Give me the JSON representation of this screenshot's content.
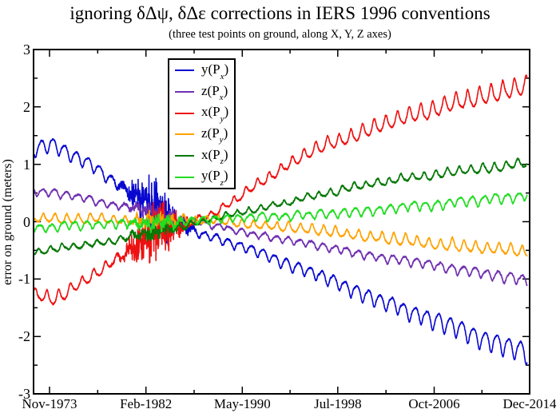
{
  "chart_data": {
    "type": "line",
    "title": "ignoring δΔψ, δΔε corrections in IERS 1996 conventions",
    "subtitle": "(three test points on ground, along X, Y, Z axes)",
    "xlabel": "",
    "ylabel": "error on ground (meters)",
    "ylim": [
      -3,
      3
    ],
    "grid": false,
    "legend_position": "upper-left-inside",
    "frame_color": "#000000",
    "y_major_ticks": [
      3,
      2,
      1,
      0,
      -1,
      -2,
      -3
    ],
    "y_tick_labels": [
      "3",
      "2",
      "1",
      "0",
      "-1",
      "-2",
      "-3"
    ],
    "y_minor_step": 0.5,
    "x_tick_labels": [
      "Nov-1973",
      "Feb-1982",
      "May-1990",
      "Jul-1998",
      "Oct-2006",
      "Dec-2014"
    ],
    "x_tick_years": [
      1973.87,
      1982.12,
      1990.37,
      1998.54,
      2006.79,
      2014.96
    ],
    "x_minor_ticks_between_majors": 1,
    "x_range_years": [
      1972.57,
      2014.75
    ],
    "annual_oscillation": true,
    "noise_burst": {
      "center_year": 1982.9,
      "half_width_years": 2.1
    },
    "series": [
      {
        "name": "y(Px)",
        "label_pre": "y(P",
        "label_sub": "x",
        "label_post": ")",
        "color": "#0808d0",
        "osc_sign": -1,
        "osc_phase": 0.58,
        "osc_amp_base": 0.05,
        "osc_amp_scale": 0.055,
        "burst_amp": 0.55,
        "seed": 11,
        "trend_points": [
          [
            1972.57,
            1.26
          ],
          [
            1974,
            1.32
          ],
          [
            1975,
            1.26
          ],
          [
            1976,
            1.14
          ],
          [
            1977,
            1.02
          ],
          [
            1978,
            0.9
          ],
          [
            1979,
            0.76
          ],
          [
            1980,
            0.62
          ],
          [
            1981,
            0.47
          ],
          [
            1982,
            0.32
          ],
          [
            1983,
            0.18
          ],
          [
            1984,
            0.05
          ],
          [
            1985,
            -0.05
          ],
          [
            1986,
            -0.14
          ],
          [
            1988,
            -0.28
          ],
          [
            1990,
            -0.42
          ],
          [
            1992,
            -0.57
          ],
          [
            1994,
            -0.72
          ],
          [
            1996,
            -0.88
          ],
          [
            1998,
            -1.04
          ],
          [
            2000,
            -1.2
          ],
          [
            2002,
            -1.36
          ],
          [
            2004,
            -1.52
          ],
          [
            2006,
            -1.66
          ],
          [
            2008,
            -1.82
          ],
          [
            2010,
            -1.98
          ],
          [
            2012,
            -2.12
          ],
          [
            2014.75,
            -2.31
          ]
        ]
      },
      {
        "name": "z(Px)",
        "label_pre": "z(P",
        "label_sub": "x",
        "label_post": ")",
        "color": "#7030b0",
        "osc_sign": -1,
        "osc_phase": 0.45,
        "osc_amp_base": 0.04,
        "osc_amp_scale": 0.045,
        "burst_amp": 0.12,
        "seed": 22,
        "trend_points": [
          [
            1972.57,
            0.55
          ],
          [
            1976,
            0.42
          ],
          [
            1980,
            0.28
          ],
          [
            1982,
            0.19
          ],
          [
            1984,
            0.09
          ],
          [
            1986,
            0.01
          ],
          [
            1988,
            -0.07
          ],
          [
            1990,
            -0.16
          ],
          [
            1994,
            -0.31
          ],
          [
            1998,
            -0.46
          ],
          [
            2002,
            -0.61
          ],
          [
            2006,
            -0.75
          ],
          [
            2010,
            -0.88
          ],
          [
            2014.75,
            -1.02
          ]
        ]
      },
      {
        "name": "x(Py)",
        "label_pre": "x(P",
        "label_sub": "y",
        "label_post": ")",
        "color": "#ee1111",
        "osc_sign": 1,
        "osc_phase": 0.58,
        "osc_amp_base": 0.05,
        "osc_amp_scale": 0.045,
        "burst_amp": 0.55,
        "seed": 33,
        "trend_points": [
          [
            1972.57,
            -1.27
          ],
          [
            1974,
            -1.33
          ],
          [
            1975,
            -1.27
          ],
          [
            1976,
            -1.14
          ],
          [
            1978,
            -0.86
          ],
          [
            1980,
            -0.57
          ],
          [
            1982,
            -0.32
          ],
          [
            1984,
            -0.12
          ],
          [
            1986,
            -0.01
          ],
          [
            1988,
            0.14
          ],
          [
            1990,
            0.42
          ],
          [
            1992,
            0.7
          ],
          [
            1994,
            0.96
          ],
          [
            1996,
            1.19
          ],
          [
            1998,
            1.38
          ],
          [
            2000,
            1.52
          ],
          [
            2002,
            1.66
          ],
          [
            2004,
            1.8
          ],
          [
            2006,
            1.92
          ],
          [
            2008,
            2.04
          ],
          [
            2010,
            2.15
          ],
          [
            2012,
            2.26
          ],
          [
            2014.75,
            2.37
          ]
        ]
      },
      {
        "name": "z(Py)",
        "label_pre": "z(P",
        "label_sub": "y",
        "label_post": ")",
        "color": "#ffa200",
        "osc_sign": 1,
        "osc_phase": 0.9,
        "osc_amp_base": 0.07,
        "osc_amp_scale": 0.055,
        "burst_amp": 0.12,
        "seed": 44,
        "trend_points": [
          [
            1972.57,
            0.06
          ],
          [
            1976,
            0.06
          ],
          [
            1980,
            0.04
          ],
          [
            1984,
            0.03
          ],
          [
            1988,
            0.02
          ],
          [
            1990,
            -0.01
          ],
          [
            1994,
            -0.09
          ],
          [
            1998,
            -0.18
          ],
          [
            2002,
            -0.27
          ],
          [
            2006,
            -0.35
          ],
          [
            2010,
            -0.44
          ],
          [
            2014.75,
            -0.52
          ]
        ]
      },
      {
        "name": "x(Pz)",
        "label_pre": "x(P",
        "label_sub": "z",
        "label_post": ")",
        "color": "#067806",
        "osc_sign": 1,
        "osc_phase": 0.3,
        "osc_amp_base": 0.04,
        "osc_amp_scale": 0.035,
        "burst_amp": 0.12,
        "seed": 55,
        "trend_points": [
          [
            1972.57,
            -0.52
          ],
          [
            1976,
            -0.42
          ],
          [
            1980,
            -0.3
          ],
          [
            1984,
            -0.13
          ],
          [
            1988,
            0.05
          ],
          [
            1992,
            0.25
          ],
          [
            1996,
            0.42
          ],
          [
            2000,
            0.6
          ],
          [
            2004,
            0.74
          ],
          [
            2008,
            0.85
          ],
          [
            2012,
            0.95
          ],
          [
            2014.75,
            1.02
          ]
        ]
      },
      {
        "name": "y(Pz)",
        "label_pre": "y(P",
        "label_sub": "z",
        "label_post": ")",
        "color": "#22dd22",
        "osc_sign": -1,
        "osc_phase": 0.7,
        "osc_amp_base": 0.06,
        "osc_amp_scale": 0.05,
        "burst_amp": 0.13,
        "seed": 66,
        "trend_points": [
          [
            1972.57,
            -0.1
          ],
          [
            1976,
            -0.07
          ],
          [
            1980,
            -0.05
          ],
          [
            1984,
            -0.02
          ],
          [
            1988,
            0.02
          ],
          [
            1992,
            0.08
          ],
          [
            1996,
            0.12
          ],
          [
            2000,
            0.17
          ],
          [
            2004,
            0.24
          ],
          [
            2008,
            0.32
          ],
          [
            2012,
            0.4
          ],
          [
            2014.75,
            0.46
          ]
        ]
      }
    ]
  }
}
